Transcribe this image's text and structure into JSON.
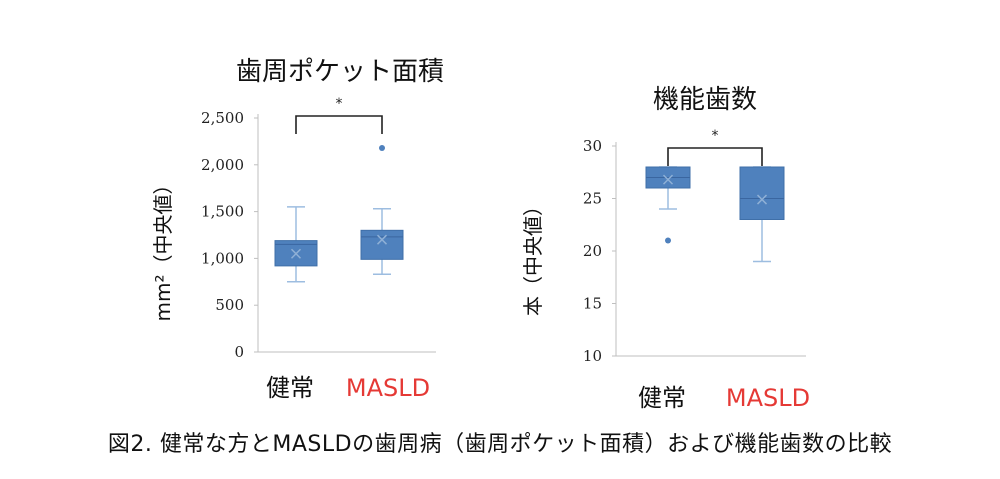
{
  "caption": "図2. 健常な方とMASLDの歯周病（歯周ポケット面積）および機能歯数の比較",
  "colors": {
    "box": "#4f81bd",
    "whisker": "#9dbde0",
    "axis": "#bfbfbf",
    "masld_label": "#e53935",
    "healthy_label": "#111111"
  },
  "chart_data": [
    {
      "type": "box",
      "title": "歯周ポケット面積",
      "ylabel": "mm²（中央値）",
      "yticks": [
        "2,500",
        "2,000",
        "1,500",
        "1,000",
        "500",
        "0"
      ],
      "ylim": [
        0,
        2500
      ],
      "significance": "*",
      "categories": [
        "健常",
        "MASLD"
      ],
      "boxes": [
        {
          "name": "健常",
          "min": 750,
          "q1": 920,
          "median": 1150,
          "q3": 1190,
          "max": 1550,
          "mean": 1050,
          "outliers": []
        },
        {
          "name": "MASLD",
          "min": 830,
          "q1": 990,
          "median": 1230,
          "q3": 1300,
          "max": 1530,
          "mean": 1200,
          "outliers": [
            2180
          ]
        }
      ]
    },
    {
      "type": "box",
      "title": "機能歯数",
      "ylabel": "本（中央値）",
      "yticks": [
        "30",
        "25",
        "20",
        "15",
        "10"
      ],
      "ylim": [
        10,
        30
      ],
      "significance": "*",
      "categories": [
        "健常",
        "MASLD"
      ],
      "boxes": [
        {
          "name": "健常",
          "min": 24,
          "q1": 26,
          "median": 27,
          "q3": 28,
          "max": 28,
          "mean": 26.8,
          "outliers": [
            21
          ]
        },
        {
          "name": "MASLD",
          "min": 19,
          "q1": 23,
          "median": 25,
          "q3": 28,
          "max": 28,
          "mean": 24.9,
          "outliers": []
        }
      ]
    }
  ]
}
